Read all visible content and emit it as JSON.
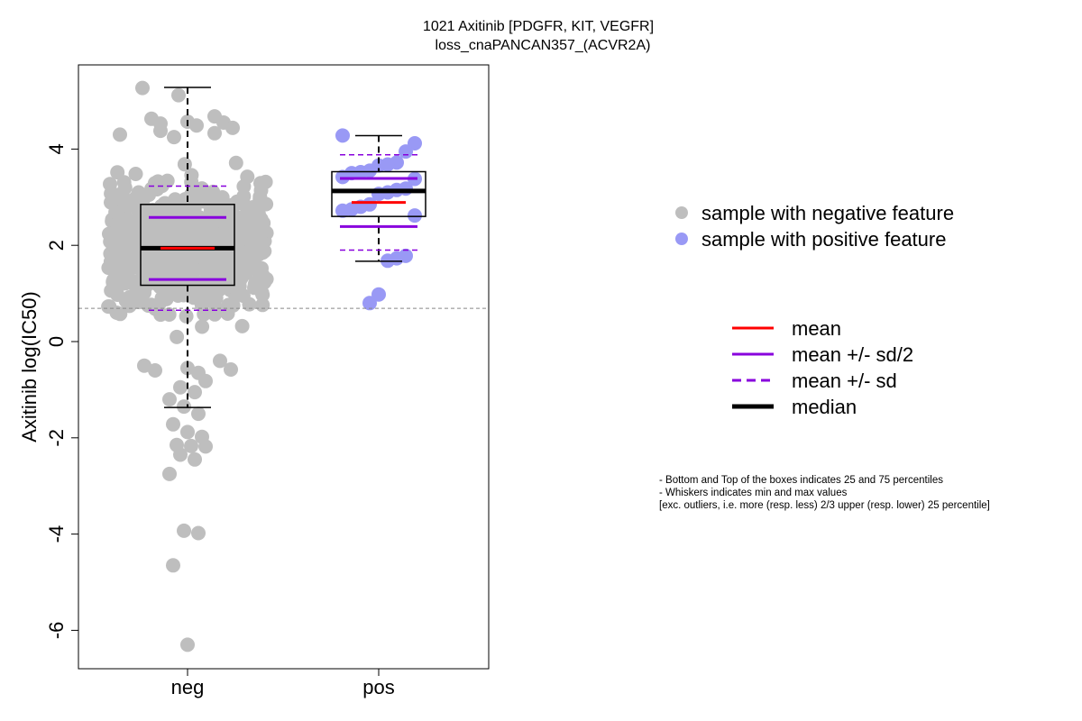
{
  "chart_data": {
    "type": "box-swarm",
    "title": "1021 Axitinib [PDGFR, KIT, VEGFR]",
    "subtitle": "loss_cnaPANCAN357_(ACVR2A)",
    "ylabel": "Axitinib log(IC50)",
    "xlabel": "",
    "categories": [
      "neg",
      "pos"
    ],
    "ylim": [
      -6.8,
      5.5
    ],
    "yticks": [
      -6,
      -4,
      -2,
      0,
      2,
      4
    ],
    "ytick_labels": [
      "-6",
      "-4",
      "-2",
      "0",
      "2",
      "4"
    ],
    "reference_line": 0.69,
    "grid": false,
    "legend_position": "right",
    "colors": {
      "neg_points": "#bebebe",
      "pos_points": "#9999f5",
      "mean": "#ff0000",
      "sd": "#8800dd",
      "median": "#000000",
      "reference_line": "#888888"
    },
    "groups": [
      {
        "name": "neg",
        "box": {
          "q1": 1.17,
          "median": 1.94,
          "q3": 2.85,
          "whisker_low": -1.37,
          "whisker_high": 5.28
        },
        "mean": 1.94,
        "mean_minus_half_sd": 1.29,
        "mean_plus_half_sd": 2.58,
        "mean_minus_sd": 0.65,
        "mean_plus_sd": 3.23,
        "points": [
          5.27,
          5.12,
          4.68,
          4.63,
          4.57,
          4.55,
          4.53,
          4.49,
          4.44,
          4.38,
          4.33,
          4.3,
          4.25,
          -0.4,
          -0.5,
          -0.55,
          -0.58,
          -0.6,
          -0.65,
          -0.82,
          -0.95,
          -1.05,
          -1.2,
          -1.35,
          -1.5,
          -1.72,
          -1.88,
          -1.98,
          -2.15,
          -2.17,
          -2.18,
          -2.35,
          -2.45,
          -2.75,
          -3.93,
          -3.98,
          -4.65,
          -6.3
        ]
      },
      {
        "name": "pos",
        "box": {
          "q1": 2.6,
          "median": 3.13,
          "q3": 3.53,
          "whisker_low": 1.67,
          "whisker_high": 4.28
        },
        "mean": 2.89,
        "mean_minus_half_sd": 2.39,
        "mean_plus_half_sd": 3.39,
        "mean_minus_sd": 1.9,
        "mean_plus_sd": 3.88,
        "points": [
          4.28,
          4.12,
          3.95,
          3.72,
          3.68,
          3.66,
          3.55,
          3.52,
          3.5,
          3.42,
          3.38,
          3.18,
          3.15,
          3.1,
          3.07,
          2.85,
          2.8,
          2.75,
          2.72,
          2.62,
          1.78,
          1.73,
          1.68,
          0.98,
          0.8
        ]
      }
    ],
    "legend_points": [
      {
        "label": "sample with negative feature",
        "color": "#bebebe"
      },
      {
        "label": "sample with positive feature",
        "color": "#9999f5"
      }
    ],
    "legend_lines": [
      {
        "label": "mean",
        "color": "#ff0000",
        "style": "solid"
      },
      {
        "label": "mean +/- sd/2",
        "color": "#8800dd",
        "style": "solid"
      },
      {
        "label": "mean +/- sd",
        "color": "#8800dd",
        "style": "dashed"
      },
      {
        "label": "median",
        "color": "#000000",
        "style": "thick"
      }
    ],
    "notes": [
      "- Bottom and Top of the boxes indicates 25 and 75 percentiles",
      "- Whiskers indicates min and max values",
      "[exc. outliers, i.e. more (resp. less) 2/3 upper (resp. lower) 25 percentile]"
    ]
  }
}
